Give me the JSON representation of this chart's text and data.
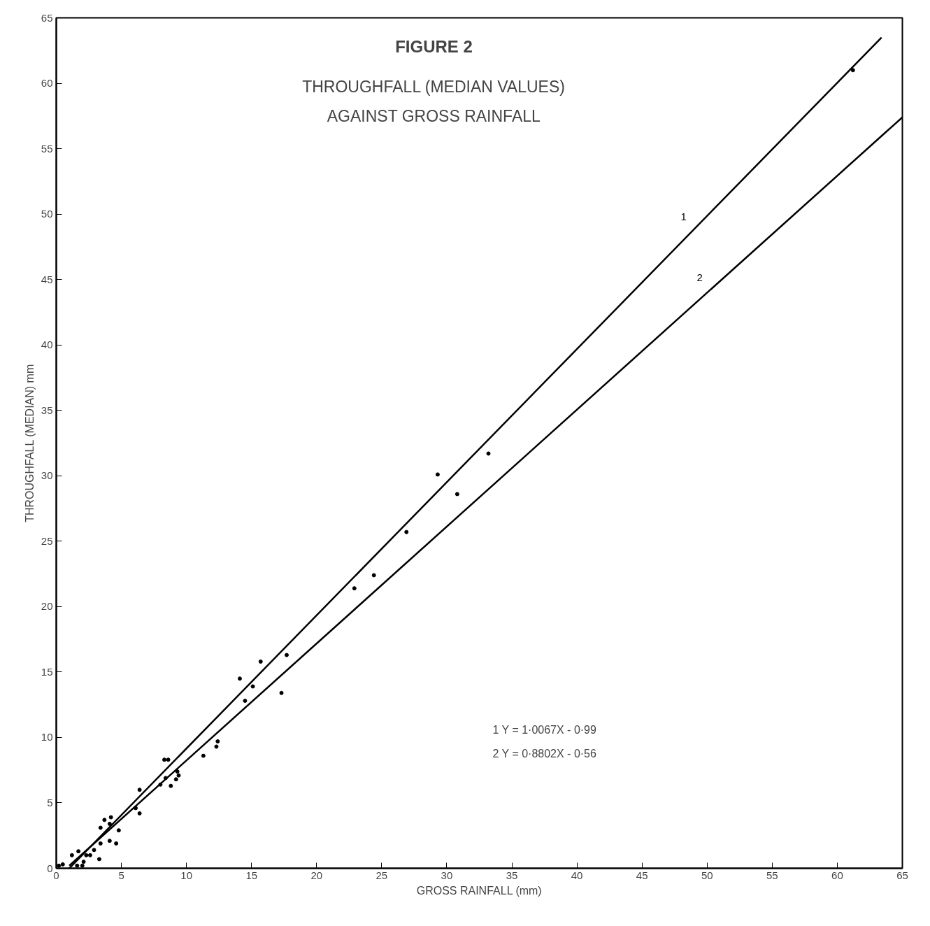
{
  "chart_data": {
    "type": "scatter",
    "title": "FIGURE 2",
    "subtitle": "THROUGHFALL (MEDIAN VALUES)\nAGAINST GROSS RAINFALL",
    "xlabel": "GROSS RAINFALL (mm)",
    "ylabel": "THROUGHFALL (MEDIAN) mm",
    "xlim": [
      0,
      65
    ],
    "ylim": [
      0,
      65
    ],
    "xticks": [
      0,
      5,
      10,
      15,
      20,
      25,
      30,
      35,
      40,
      45,
      50,
      55,
      60,
      65
    ],
    "yticks": [
      0,
      5,
      10,
      15,
      20,
      25,
      30,
      35,
      40,
      45,
      50,
      55,
      60,
      65
    ],
    "grid": false,
    "marker": "circle",
    "series": [
      {
        "color": "#000000",
        "x": [
          61.2,
          33.2,
          29.3,
          30.8,
          26.9,
          24.4,
          22.9,
          17.7,
          15.7,
          14.1,
          15.1,
          14.5,
          17.3,
          12.3,
          12.4,
          11.3,
          8.3,
          8.6,
          9.3,
          9.4,
          9.2,
          8.8,
          8.4,
          8.0,
          6.4,
          6.1,
          6.4,
          4.2,
          3.7,
          4.1,
          3.4,
          4.8,
          4.1,
          4.6,
          3.3,
          3.4,
          2.9,
          2.6,
          1.7,
          1.2,
          2.1,
          2.0,
          1.6,
          0.5,
          0.2,
          2.3
        ],
        "values": [
          61.0,
          31.7,
          30.1,
          28.6,
          25.7,
          22.4,
          21.4,
          16.3,
          15.8,
          14.5,
          13.9,
          12.8,
          13.4,
          9.3,
          9.7,
          8.6,
          8.3,
          8.3,
          7.4,
          7.1,
          6.8,
          6.3,
          6.9,
          6.4,
          6.0,
          4.6,
          4.2,
          3.9,
          3.7,
          3.4,
          3.1,
          2.9,
          2.1,
          1.9,
          0.7,
          1.9,
          1.4,
          1.0,
          1.3,
          1.0,
          0.5,
          0.2,
          0.2,
          0.3,
          0.2,
          1.0
        ]
      },
      {
        "type": "line",
        "name": "1",
        "marker": "none",
        "color": "#000000",
        "x": [
          1,
          63.4
        ],
        "values": [
          0,
          63.5
        ]
      },
      {
        "type": "line",
        "name": "2",
        "marker": "none",
        "color": "#000000",
        "x": [
          1,
          65
        ],
        "values": [
          0.2,
          57.4
        ]
      }
    ],
    "annotations": [
      "1  Y = 1·0067X - 0·99",
      "2  Y = 0·8802X - 0·56"
    ]
  }
}
